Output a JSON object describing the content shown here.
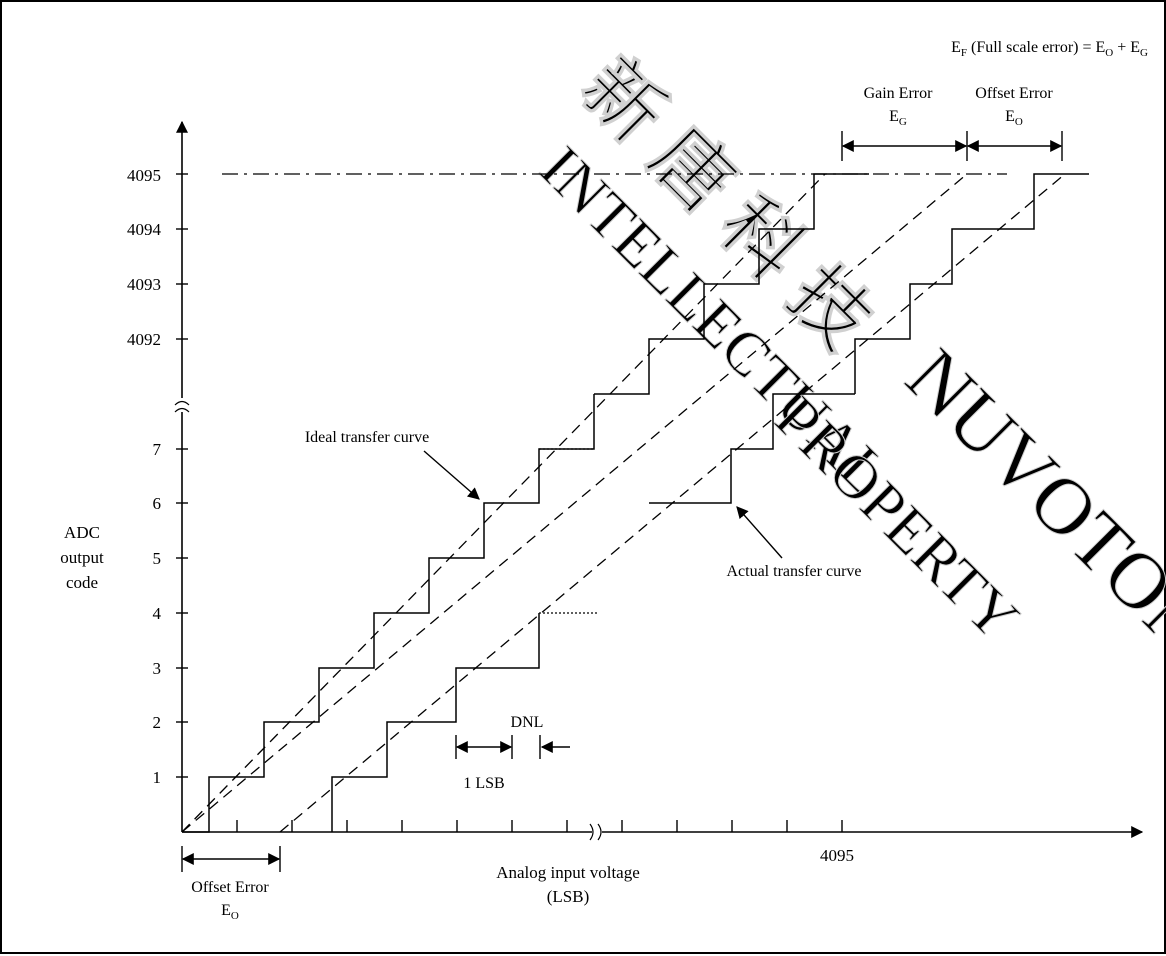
{
  "title": {
    "full_scale_prefix": "E",
    "full_scale_sub": "F",
    "full_scale_text": " (Full scale error) = E",
    "full_scale_o_sub": "O",
    "full_scale_plus": " + E",
    "full_scale_g_sub": "G"
  },
  "axes": {
    "y_label_lines": [
      "ADC",
      "output",
      "code"
    ],
    "x_label_lines": [
      "Analog input voltage",
      "(LSB)"
    ],
    "y_ticks_low": [
      "1",
      "2",
      "3",
      "4",
      "5",
      "6",
      "7"
    ],
    "y_ticks_high": [
      "4092",
      "4093",
      "4094",
      "4095"
    ],
    "x_tick_4095": "4095"
  },
  "annotations": {
    "ideal_transfer_curve": "Ideal transfer curve",
    "actual_transfer_curve": "Actual transfer curve",
    "dnl": "DNL",
    "one_lsb": "1 LSB",
    "gain_error": "Gain Error",
    "gain_error_symbol": "E",
    "gain_error_sub": "G",
    "offset_error_top": "Offset Error",
    "offset_error_top_symbol": "E",
    "offset_error_top_sub": "O",
    "offset_error_bottom": "Offset Error",
    "offset_error_bottom_symbol": "E",
    "offset_error_bottom_sub": "O"
  },
  "watermark": {
    "chinese": "新 唐 科 技",
    "english_line1": "INTELLECTUAL",
    "english_line2": "PROPERTY",
    "brand": "NUVOTON"
  },
  "colors": {
    "ink": "#000000",
    "watermark": "#e2e2e2",
    "background": "#ffffff"
  }
}
